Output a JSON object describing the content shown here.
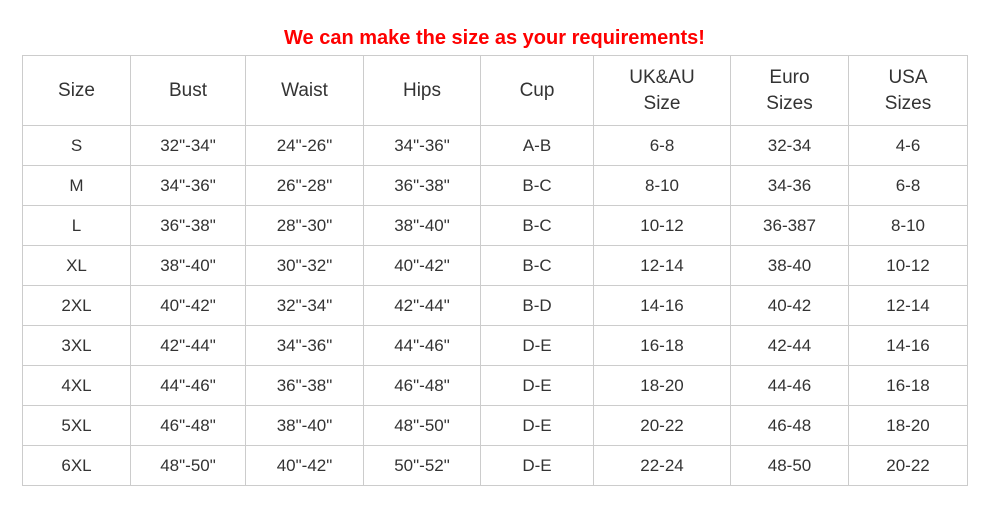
{
  "page": {
    "title": "We can make the size as your requirements!"
  },
  "colors": {
    "title_red": "#fe0000",
    "text": "#333333",
    "border": "#cccccc",
    "background": "#ffffff"
  },
  "chart_data": {
    "type": "table",
    "title": "We can make the size as your requirements!",
    "columns": [
      "Size",
      "Bust",
      "Waist",
      "Hips",
      "Cup",
      "UK&AU\nSize",
      "Euro\nSizes",
      "USA\nSizes"
    ],
    "rows": [
      [
        "S",
        "32\"-34\"",
        "24\"-26\"",
        "34\"-36\"",
        "A-B",
        "6-8",
        "32-34",
        "4-6"
      ],
      [
        "M",
        "34\"-36\"",
        "26\"-28\"",
        "36\"-38\"",
        "B-C",
        "8-10",
        "34-36",
        "6-8"
      ],
      [
        "L",
        "36\"-38\"",
        "28\"-30\"",
        "38\"-40\"",
        "B-C",
        "10-12",
        "36-387",
        "8-10"
      ],
      [
        "XL",
        "38\"-40\"",
        "30\"-32\"",
        "40\"-42\"",
        "B-C",
        "12-14",
        "38-40",
        "10-12"
      ],
      [
        "2XL",
        "40\"-42\"",
        "32\"-34\"",
        "42\"-44\"",
        "B-D",
        "14-16",
        "40-42",
        "12-14"
      ],
      [
        "3XL",
        "42\"-44\"",
        "34\"-36\"",
        "44\"-46\"",
        "D-E",
        "16-18",
        "42-44",
        "14-16"
      ],
      [
        "4XL",
        "44\"-46\"",
        "36\"-38\"",
        "46\"-48\"",
        "D-E",
        "18-20",
        "44-46",
        "16-18"
      ],
      [
        "5XL",
        "46\"-48\"",
        "38\"-40\"",
        "48\"-50\"",
        "D-E",
        "20-22",
        "46-48",
        "18-20"
      ],
      [
        "6XL",
        "48\"-50\"",
        "40\"-42\"",
        "50\"-52\"",
        "D-E",
        "22-24",
        "48-50",
        "20-22"
      ]
    ]
  }
}
